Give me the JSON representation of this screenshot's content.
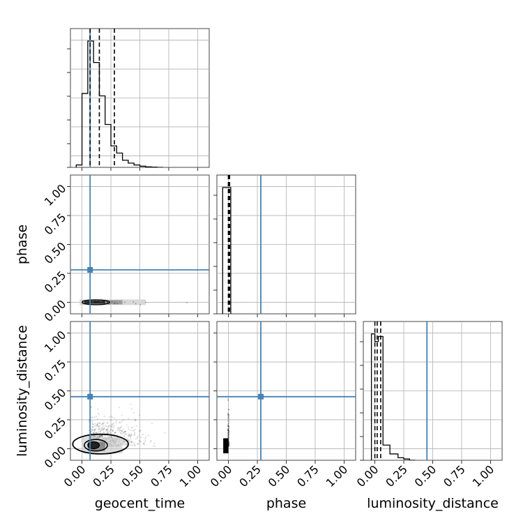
{
  "chart_data": {
    "type": "corner",
    "parameters": [
      "geocent_time",
      "phase",
      "luminosity_distance"
    ],
    "axis_range": [
      -0.1,
      1.1
    ],
    "ticks": [
      "0.00",
      "0.25",
      "0.50",
      "0.75",
      "1.00"
    ],
    "tick_values": [
      0,
      0.25,
      0.5,
      0.75,
      1.0
    ],
    "truth_color": "#4682b4",
    "truths": {
      "geocent_time": 0.07,
      "phase": 0.28,
      "luminosity_distance": 0.45
    },
    "quantiles": {
      "geocent_time": [
        0.07,
        0.15,
        0.28
      ],
      "phase": [
        0.0,
        0.0,
        0.01
      ],
      "luminosity_distance": [
        0.0,
        0.02,
        0.05
      ]
    },
    "histograms": {
      "geocent_time": {
        "bin_edges": [
          -0.05,
          0.0,
          0.05,
          0.1,
          0.15,
          0.2,
          0.25,
          0.3,
          0.35,
          0.4,
          0.45,
          0.5,
          0.55,
          0.6,
          0.65,
          0.7
        ],
        "counts": [
          1,
          31,
          53,
          44,
          30,
          18,
          9,
          6,
          3,
          1.8,
          1.0,
          0.5,
          0.2,
          0.1,
          0
        ]
      },
      "phase": {
        "bin_edges": [
          -0.05,
          0.02
        ],
        "counts": [
          1
        ]
      },
      "luminosity_distance": {
        "bin_edges": [
          -0.03,
          0.0,
          0.03,
          0.07,
          0.13,
          0.2,
          0.25,
          0.3,
          0.35
        ],
        "counts": [
          1,
          0.94,
          0.98,
          0.12,
          0.05,
          0.02,
          0.01,
          0
        ]
      }
    },
    "pairs": [
      {
        "x": "geocent_time",
        "y": "phase",
        "x_extent": [
          -0.02,
          0.75
        ],
        "y_center": 0.0
      },
      {
        "x": "geocent_time",
        "y": "luminosity_distance",
        "x_extent": [
          -0.02,
          0.75
        ],
        "y_extent": [
          -0.04,
          0.5
        ]
      },
      {
        "x": "phase",
        "y": "luminosity_distance",
        "x_extent": [
          -0.02,
          0.02
        ],
        "y_extent": [
          -0.04,
          0.5
        ]
      }
    ],
    "grid": true
  }
}
